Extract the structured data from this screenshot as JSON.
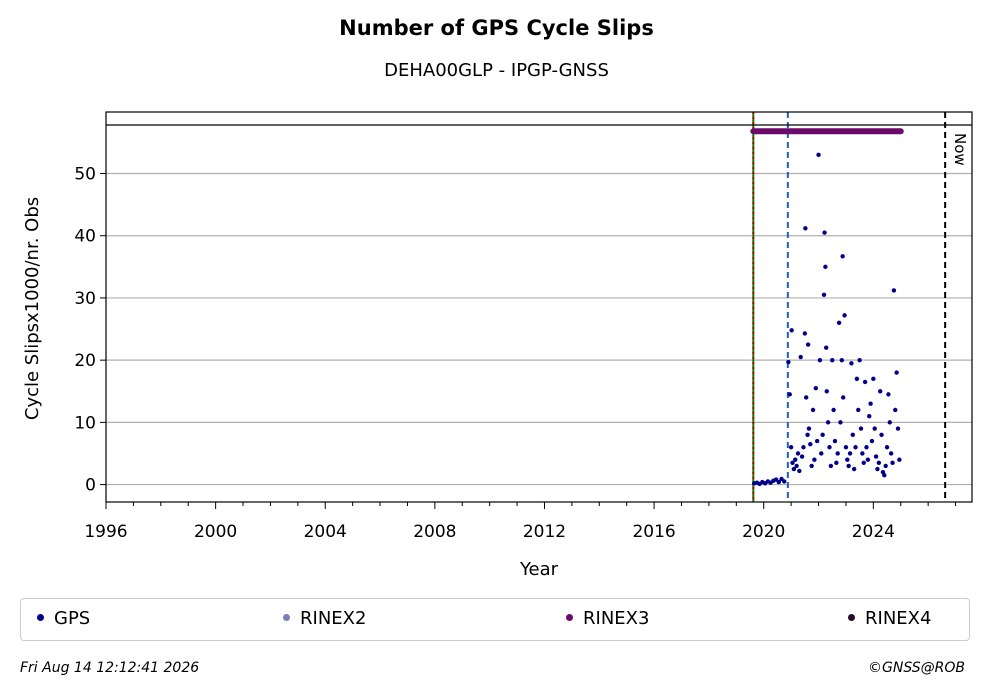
{
  "chart_data": {
    "type": "scatter",
    "title": "Number of GPS Cycle Slips",
    "subtitle": "DEHA00GLP - IPGP-GNSS",
    "xlabel": "Year",
    "ylabel": "Cycle Slipsx1000/nr. Obs",
    "xlim": [
      1996,
      2027.6
    ],
    "ylim": [
      -2.8,
      57.8
    ],
    "xticks": [
      1996,
      2000,
      2004,
      2008,
      2012,
      2016,
      2020,
      2024
    ],
    "yticks": [
      0,
      10,
      20,
      30,
      40,
      50
    ],
    "grid": "y",
    "legend_position": "bottom",
    "now_label": "Now",
    "vlines": [
      {
        "x": 2019.62,
        "color": "#008000",
        "style": "solid"
      },
      {
        "x": 2019.62,
        "color": "#cc0000",
        "style": "dotted"
      },
      {
        "x": 2020.88,
        "color": "#1f5fbf",
        "style": "dashed"
      },
      {
        "x": 2026.62,
        "color": "#000000",
        "style": "dashed"
      }
    ],
    "rinex3_span": {
      "x_start": 2019.62,
      "x_end": 2025.0,
      "y": 56.8
    },
    "series": [
      {
        "name": "GPS",
        "color": "#00008b",
        "points": [
          [
            2019.65,
            0.2
          ],
          [
            2019.75,
            0.3
          ],
          [
            2019.85,
            0.1
          ],
          [
            2019.95,
            0.4
          ],
          [
            2020.05,
            0.2
          ],
          [
            2020.15,
            0.5
          ],
          [
            2020.25,
            0.3
          ],
          [
            2020.35,
            0.6
          ],
          [
            2020.45,
            0.8
          ],
          [
            2020.55,
            0.4
          ],
          [
            2020.65,
            0.9
          ],
          [
            2020.75,
            0.5
          ],
          [
            2020.9,
            19.7
          ],
          [
            2020.95,
            14.5
          ],
          [
            2021.0,
            6.0
          ],
          [
            2021.02,
            24.8
          ],
          [
            2021.05,
            3.5
          ],
          [
            2021.1,
            2.5
          ],
          [
            2021.15,
            4.0
          ],
          [
            2021.2,
            3.0
          ],
          [
            2021.25,
            5.0
          ],
          [
            2021.3,
            2.2
          ],
          [
            2021.35,
            20.5
          ],
          [
            2021.4,
            4.5
          ],
          [
            2021.45,
            6.0
          ],
          [
            2021.5,
            24.3
          ],
          [
            2021.52,
            41.2
          ],
          [
            2021.55,
            14.0
          ],
          [
            2021.6,
            8.0
          ],
          [
            2021.62,
            22.5
          ],
          [
            2021.65,
            9.0
          ],
          [
            2021.7,
            6.5
          ],
          [
            2021.75,
            3.0
          ],
          [
            2021.8,
            12.0
          ],
          [
            2021.85,
            4.0
          ],
          [
            2021.9,
            15.5
          ],
          [
            2021.95,
            7.0
          ],
          [
            2022.0,
            53.0
          ],
          [
            2022.05,
            20.0
          ],
          [
            2022.1,
            5.0
          ],
          [
            2022.15,
            8.0
          ],
          [
            2022.2,
            30.5
          ],
          [
            2022.22,
            40.5
          ],
          [
            2022.25,
            35.0
          ],
          [
            2022.28,
            22.0
          ],
          [
            2022.3,
            15.0
          ],
          [
            2022.35,
            10.0
          ],
          [
            2022.4,
            6.0
          ],
          [
            2022.45,
            3.0
          ],
          [
            2022.5,
            20.0
          ],
          [
            2022.55,
            12.0
          ],
          [
            2022.6,
            7.0
          ],
          [
            2022.65,
            3.5
          ],
          [
            2022.7,
            5.0
          ],
          [
            2022.75,
            26.0
          ],
          [
            2022.8,
            10.0
          ],
          [
            2022.85,
            20.0
          ],
          [
            2022.88,
            36.7
          ],
          [
            2022.9,
            14.0
          ],
          [
            2022.95,
            27.2
          ],
          [
            2023.0,
            6.0
          ],
          [
            2023.05,
            4.0
          ],
          [
            2023.1,
            3.0
          ],
          [
            2023.15,
            5.0
          ],
          [
            2023.2,
            19.5
          ],
          [
            2023.25,
            8.0
          ],
          [
            2023.3,
            2.5
          ],
          [
            2023.35,
            6.0
          ],
          [
            2023.4,
            17.0
          ],
          [
            2023.45,
            12.0
          ],
          [
            2023.5,
            20.0
          ],
          [
            2023.55,
            9.0
          ],
          [
            2023.6,
            5.0
          ],
          [
            2023.65,
            3.5
          ],
          [
            2023.7,
            16.5
          ],
          [
            2023.75,
            6.0
          ],
          [
            2023.8,
            4.0
          ],
          [
            2023.85,
            11.0
          ],
          [
            2023.9,
            13.0
          ],
          [
            2023.95,
            7.0
          ],
          [
            2024.0,
            17.0
          ],
          [
            2024.05,
            9.0
          ],
          [
            2024.1,
            4.5
          ],
          [
            2024.15,
            2.5
          ],
          [
            2024.2,
            3.5
          ],
          [
            2024.25,
            15.0
          ],
          [
            2024.3,
            8.0
          ],
          [
            2024.35,
            2.0
          ],
          [
            2024.4,
            1.5
          ],
          [
            2024.45,
            3.0
          ],
          [
            2024.5,
            6.0
          ],
          [
            2024.55,
            14.5
          ],
          [
            2024.6,
            10.0
          ],
          [
            2024.65,
            5.0
          ],
          [
            2024.7,
            3.5
          ],
          [
            2024.75,
            31.2
          ],
          [
            2024.8,
            12.0
          ],
          [
            2024.85,
            18.0
          ],
          [
            2024.9,
            9.0
          ],
          [
            2024.95,
            4.0
          ]
        ]
      },
      {
        "name": "RINEX2",
        "color": "#7b7fb8",
        "points": []
      },
      {
        "name": "RINEX3",
        "color": "#6b0a6b",
        "points": []
      },
      {
        "name": "RINEX4",
        "color": "#2a0a2a",
        "points": []
      }
    ]
  },
  "footer": {
    "timestamp": "Fri Aug 14 12:12:41 2026",
    "credit": "©GNSS@ROB"
  }
}
